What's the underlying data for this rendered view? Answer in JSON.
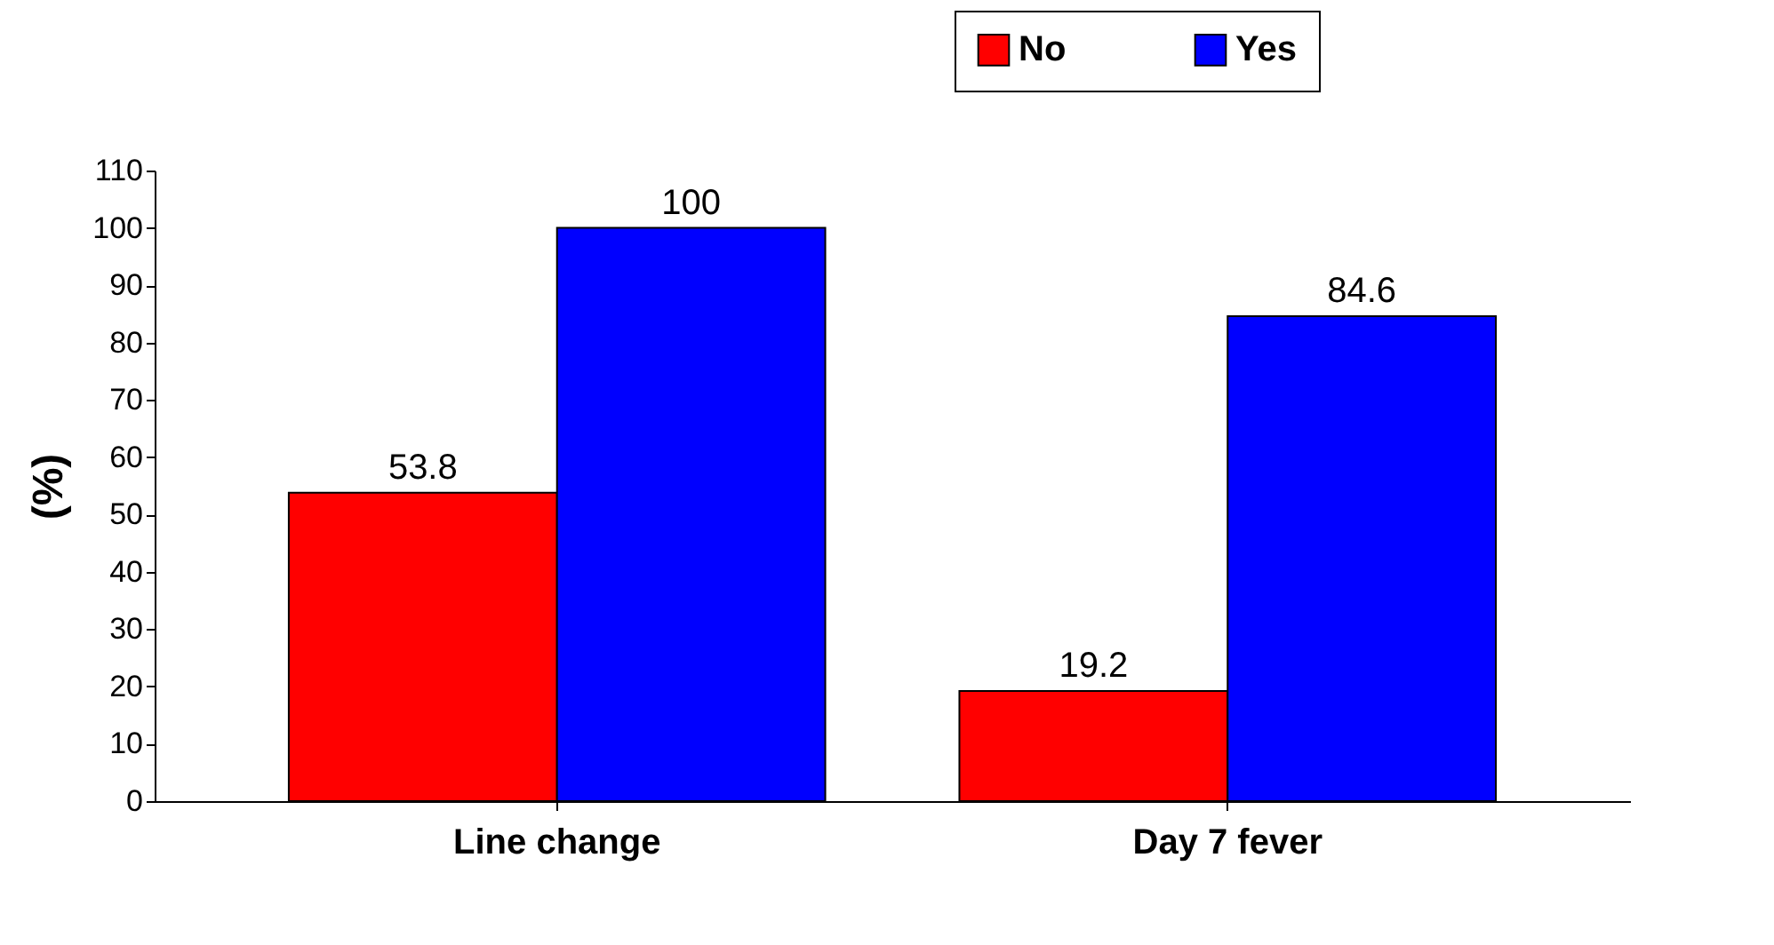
{
  "chart_data": {
    "type": "bar",
    "ylabel": "(%)",
    "categories": [
      "Line change",
      "Day 7 fever"
    ],
    "series": [
      {
        "name": "No",
        "color": "#ff0000",
        "values": [
          53.8,
          19.2
        ]
      },
      {
        "name": "Yes",
        "color": "#0000ff",
        "values": [
          100,
          84.6
        ]
      }
    ],
    "ylim": [
      0,
      110
    ],
    "yticks": [
      0,
      10,
      20,
      30,
      40,
      50,
      60,
      70,
      80,
      90,
      100,
      110
    ],
    "grid": false,
    "legend": "top right",
    "data_labels": true
  }
}
